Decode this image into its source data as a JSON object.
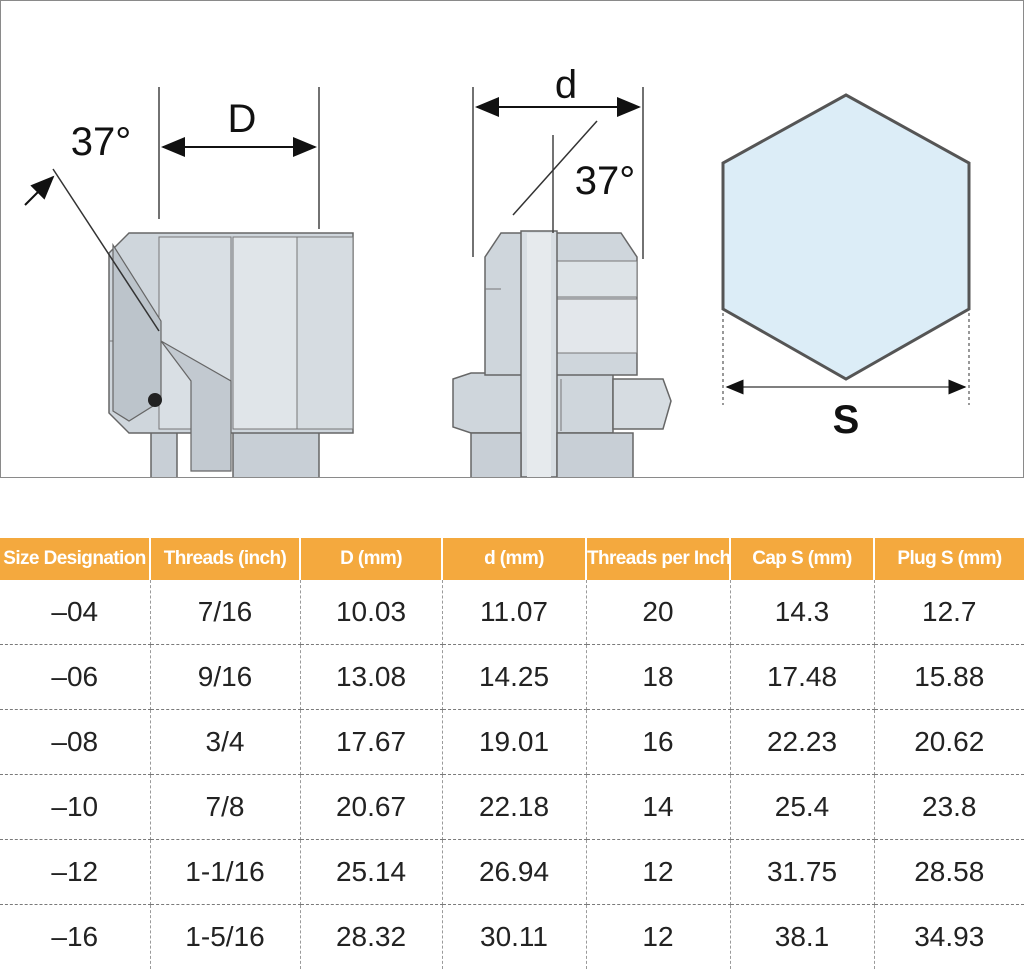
{
  "diagram": {
    "female_flare": {
      "dimension_label": "D",
      "angle_label": "37°"
    },
    "male_flare": {
      "dimension_label": "d",
      "angle_label": "37°"
    },
    "hex": {
      "dimension_label": "S"
    }
  },
  "table": {
    "headers": [
      "Size Designation",
      "Threads (inch)",
      "D (mm)",
      "d (mm)",
      "Threads per Inch",
      "Cap S (mm)",
      "Plug S (mm)"
    ],
    "rows": [
      [
        "–04",
        "7/16",
        "10.03",
        "11.07",
        "20",
        "14.3",
        "12.7"
      ],
      [
        "–06",
        "9/16",
        "13.08",
        "14.25",
        "18",
        "17.48",
        "15.88"
      ],
      [
        "–08",
        "3/4",
        "17.67",
        "19.01",
        "16",
        "22.23",
        "20.62"
      ],
      [
        "–10",
        "7/8",
        "20.67",
        "22.18",
        "14",
        "25.4",
        "23.8"
      ],
      [
        "–12",
        "1-1/16",
        "25.14",
        "26.94",
        "12",
        "31.75",
        "28.58"
      ],
      [
        "–16",
        "1-5/16",
        "28.32",
        "30.11",
        "12",
        "38.1",
        "34.93"
      ]
    ]
  },
  "colors": {
    "header_bg": "#f4a93e",
    "fitting_fill": "#cfd6dc",
    "hex_fill": "#dcedf7"
  }
}
